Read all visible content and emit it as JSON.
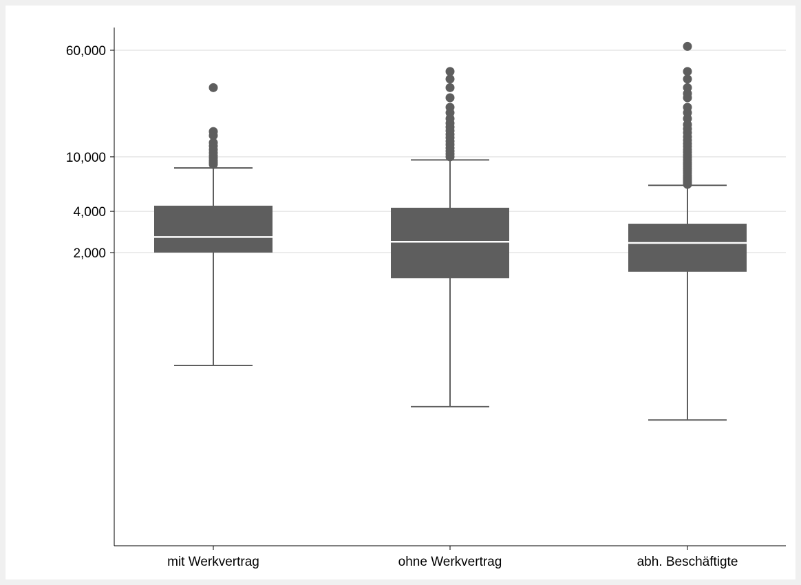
{
  "chart_data": {
    "type": "box",
    "title": "",
    "xlabel": "",
    "ylabel": "",
    "yscale": "log",
    "grid": true,
    "yticks": [
      2000,
      4000,
      10000,
      60000
    ],
    "ytick_labels": [
      "2,000",
      "4,000",
      "10,000",
      "60,000"
    ],
    "categories": [
      "mit Werkvertrag",
      "ohne Werkvertrag",
      "abh. Beschäftigte"
    ],
    "boxes": [
      {
        "category": "mit Werkvertrag",
        "whisker_low": 300,
        "q1": 2000,
        "median": 2600,
        "q3": 4400,
        "whisker_high": 8300,
        "outliers": [
          8800,
          9100,
          9400,
          9800,
          10200,
          10700,
          11300,
          12000,
          12700,
          14300,
          15300,
          32000
        ]
      },
      {
        "category": "ohne Werkvertrag",
        "whisker_low": 150,
        "q1": 1300,
        "median": 2400,
        "q3": 4250,
        "whisker_high": 9500,
        "outliers": [
          10000,
          10500,
          11000,
          11600,
          12300,
          13000,
          13800,
          14600,
          15500,
          16500,
          17600,
          19000,
          21000,
          23000,
          27000,
          32000,
          37000,
          42000
        ]
      },
      {
        "category": "abh. Beschäftigte",
        "whisker_low": 120,
        "q1": 1450,
        "median": 2350,
        "q3": 3250,
        "whisker_high": 6200,
        "outliers": [
          6300,
          6500,
          6700,
          6900,
          7100,
          7300,
          7600,
          7900,
          8200,
          8500,
          8800,
          9100,
          9500,
          9900,
          10300,
          10800,
          11300,
          11900,
          12500,
          13200,
          14000,
          15000,
          16000,
          17200,
          19000,
          21000,
          23000,
          27000,
          29000,
          32000,
          37000,
          42000,
          64000
        ]
      }
    ]
  },
  "colors": {
    "box_fill": "#5e5e5e",
    "median": "#ffffff",
    "whisker": "#5e5e5e",
    "outlier": "#5e5e5e",
    "grid": "#e6e6e6",
    "outer_background": "#f0f0f0",
    "plot_background": "#ffffff"
  }
}
